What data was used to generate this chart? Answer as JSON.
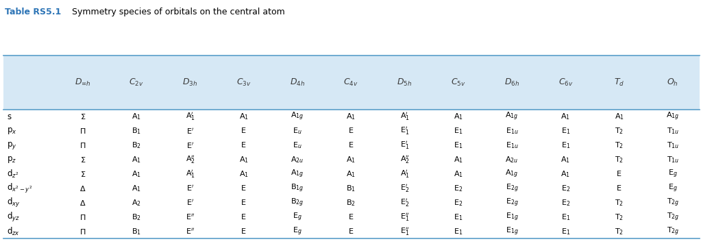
{
  "title_bold": "Table RS5.1",
  "title_normal": "  Symmetry species of orbitals on the central atom",
  "title_color": "#2e75b6",
  "header_bg": "#d6e8f5",
  "header_line_color": "#5a9ec9",
  "fig_width": 10.23,
  "fig_height": 3.59,
  "dpi": 100,
  "col_header_texts": [
    "$D_{\\infty h}$",
    "$C_{2v}$",
    "$D_{3h}$",
    "$C_{3v}$",
    "$D_{4h}$",
    "$C_{4v}$",
    "$D_{5h}$",
    "$C_{5v}$",
    "$D_{6h}$",
    "$C_{6v}$",
    "$T_d$",
    "$O_h$"
  ],
  "row_label_display": [
    "s",
    "p$_x$",
    "p$_y$",
    "p$_z$",
    "d$_{z^2}$",
    "d$_{x^2-y^2}$",
    "d$_{xy}$",
    "d$_{yz}$",
    "d$_{zx}$"
  ],
  "table_display": [
    [
      "$\\Sigma$",
      "A$_1$",
      "A$_1'$",
      "A$_1$",
      "A$_{1g}$",
      "A$_1$",
      "A$_1'$",
      "A$_1$",
      "A$_{1g}$",
      "A$_1$",
      "A$_1$",
      "A$_{1g}$"
    ],
    [
      "$\\Pi$",
      "B$_1$",
      "E$'$",
      "E",
      "E$_u$",
      "E",
      "E$_1'$",
      "E$_1$",
      "E$_{1u}$",
      "E$_1$",
      "T$_2$",
      "T$_{1u}$"
    ],
    [
      "$\\Pi$",
      "B$_2$",
      "E$'$",
      "E",
      "E$_u$",
      "E",
      "E$_1'$",
      "E$_1$",
      "E$_{1u}$",
      "E$_1$",
      "T$_2$",
      "T$_{1u}$"
    ],
    [
      "$\\Sigma$",
      "A$_1$",
      "A$_2''$",
      "A$_1$",
      "A$_{2u}$",
      "A$_1$",
      "A$_2''$",
      "A$_1$",
      "A$_{2u}$",
      "A$_1$",
      "T$_2$",
      "T$_{1u}$"
    ],
    [
      "$\\Sigma$",
      "A$_1$",
      "A$_1'$",
      "A$_1$",
      "A$_{1g}$",
      "A$_1$",
      "A$_1'$",
      "A$_1$",
      "A$_{1g}$",
      "A$_1$",
      "E",
      "E$_g$"
    ],
    [
      "$\\Delta$",
      "A$_1$",
      "E$'$",
      "E",
      "B$_{1g}$",
      "B$_1$",
      "E$_2'$",
      "E$_2$",
      "E$_{2g}$",
      "E$_2$",
      "E",
      "E$_g$"
    ],
    [
      "$\\Delta$",
      "A$_2$",
      "E$'$",
      "E",
      "B$_{2g}$",
      "B$_2$",
      "E$_2'$",
      "E$_2$",
      "E$_{2g}$",
      "E$_2$",
      "T$_2$",
      "T$_{2g}$"
    ],
    [
      "$\\Pi$",
      "B$_2$",
      "E$''$",
      "E",
      "E$_g$",
      "E",
      "E$_1''$",
      "E$_1$",
      "E$_{1g}$",
      "E$_1$",
      "T$_2$",
      "T$_{2g}$"
    ],
    [
      "$\\Pi$",
      "B$_1$",
      "E$''$",
      "E",
      "E$_g$",
      "E",
      "E$_1''$",
      "E$_1$",
      "E$_{1g}$",
      "E$_1$",
      "T$_2$",
      "T$_{2g}$"
    ]
  ]
}
